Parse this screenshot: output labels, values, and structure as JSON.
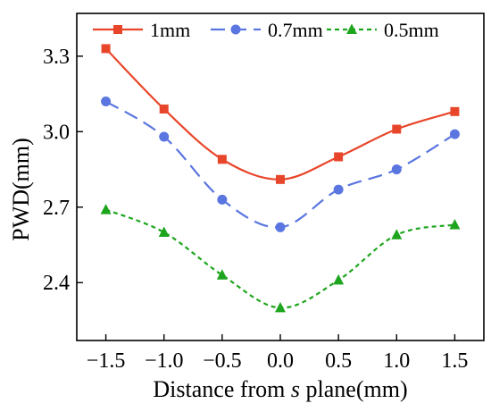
{
  "chart_data": {
    "type": "line",
    "title": "",
    "xlabel_prefix": "Distance from ",
    "xlabel_italic": "s",
    "xlabel_suffix": " plane(mm)",
    "ylabel": "PWD(mm)",
    "x": [
      -1.5,
      -1.0,
      -0.5,
      0.0,
      0.5,
      1.0,
      1.5
    ],
    "xticks": [
      -1.5,
      -1.0,
      -0.5,
      0.0,
      0.5,
      1.0,
      1.5
    ],
    "xtick_labels": [
      "−1.5",
      "−1.0",
      "−0.5",
      "0.0",
      "0.5",
      "1.0",
      "1.5"
    ],
    "yticks": [
      2.4,
      2.7,
      3.0,
      3.3
    ],
    "ytick_labels": [
      "2.4",
      "2.7",
      "3.0",
      "3.3"
    ],
    "xlim": [
      -1.75,
      1.75
    ],
    "ylim": [
      2.17,
      3.47
    ],
    "grid": false,
    "legend_position": "top",
    "series": [
      {
        "name": "1mm",
        "color": "#e8462a",
        "line_style": "solid",
        "marker": "square",
        "values": [
          3.33,
          3.09,
          2.89,
          2.81,
          2.9,
          3.01,
          3.08
        ]
      },
      {
        "name": "0.7mm",
        "color": "#5b76e0",
        "line_style": "dashed",
        "marker": "circle",
        "values": [
          3.12,
          2.98,
          2.73,
          2.62,
          2.77,
          2.85,
          2.99
        ]
      },
      {
        "name": "0.5mm",
        "color": "#1ea51e",
        "line_style": "dotted",
        "marker": "triangle",
        "values": [
          2.69,
          2.6,
          2.43,
          2.3,
          2.41,
          2.59,
          2.63
        ]
      }
    ]
  }
}
